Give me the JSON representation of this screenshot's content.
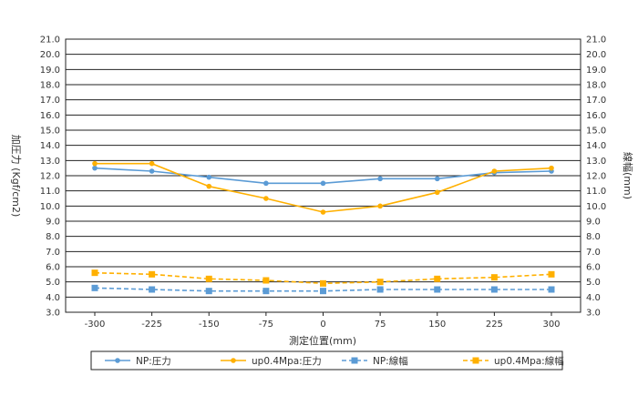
{
  "chart_data": {
    "type": "line",
    "x": [
      -300,
      -225,
      -150,
      -75,
      0,
      75,
      150,
      225,
      300
    ],
    "x_tick_labels": [
      "-300",
      "-225",
      "-150",
      "-75",
      "0",
      "75",
      "150",
      "225",
      "300"
    ],
    "xlabel": "測定位置(mm)",
    "ylabel_left": "加圧力 (Kgf/cm2)",
    "ylabel_right": "線幅(mm)",
    "ylim": [
      3.0,
      21.0
    ],
    "y_ticks": [
      "3.0",
      "4.0",
      "5.0",
      "6.0",
      "7.0",
      "8.0",
      "9.0",
      "10.0",
      "11.0",
      "12.0",
      "13.0",
      "14.0",
      "15.0",
      "16.0",
      "17.0",
      "18.0",
      "19.0",
      "20.0",
      "21.0"
    ],
    "grid": true,
    "legend_position": "bottom",
    "series": [
      {
        "name": "NP:圧力",
        "color": "#5b9bd5",
        "line_style": "solid",
        "marker": "circle",
        "values": [
          12.5,
          12.3,
          11.9,
          11.5,
          11.5,
          11.8,
          11.8,
          12.2,
          12.3
        ]
      },
      {
        "name": "up0.4Mpa:圧力",
        "color": "#ffb000",
        "line_style": "solid",
        "marker": "circle",
        "values": [
          12.8,
          12.8,
          11.3,
          10.5,
          9.6,
          10.0,
          10.9,
          12.3,
          12.5
        ]
      },
      {
        "name": "NP:線幅",
        "color": "#5b9bd5",
        "line_style": "dashed",
        "marker": "square",
        "values": [
          4.6,
          4.5,
          4.4,
          4.4,
          4.4,
          4.5,
          4.5,
          4.5,
          4.5
        ]
      },
      {
        "name": "up0.4Mpa:線幅",
        "color": "#ffb000",
        "line_style": "dashed",
        "marker": "square",
        "values": [
          5.6,
          5.5,
          5.2,
          5.1,
          4.9,
          5.0,
          5.2,
          5.3,
          5.5
        ]
      }
    ]
  }
}
